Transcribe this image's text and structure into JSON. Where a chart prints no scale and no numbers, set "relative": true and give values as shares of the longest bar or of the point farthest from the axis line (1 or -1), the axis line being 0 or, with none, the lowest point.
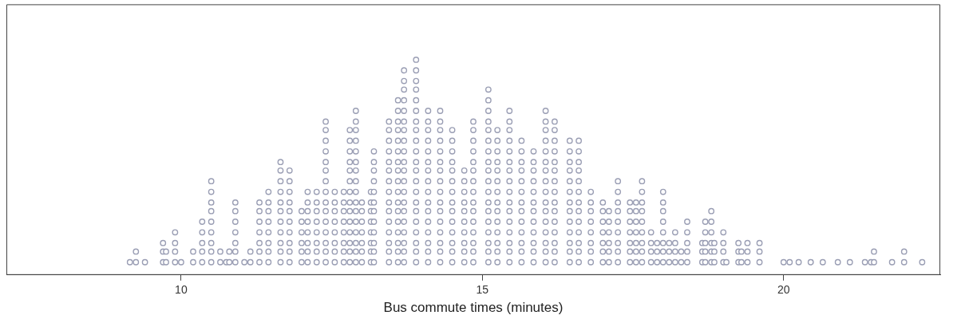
{
  "chart_data": {
    "type": "scatter",
    "relative": true,
    "xlabel": "Bus commute times (minutes)",
    "xlim": [
      7.1,
      22.6
    ],
    "xticks": [
      10,
      15,
      20
    ],
    "tick_labels": "x",
    "grid": false,
    "legend": false,
    "marker": "circle",
    "series": [
      {
        "color": "#9a9eb4",
        "x": [
          9.15,
          9.25,
          9.25,
          9.4,
          9.7,
          9.7,
          9.7,
          9.75,
          9.75,
          9.9,
          9.9,
          9.9,
          9.9,
          10,
          10.2,
          10.2,
          10.35,
          10.35,
          10.35,
          10.35,
          10.35,
          10.5,
          10.5,
          10.5,
          10.5,
          10.5,
          10.5,
          10.5,
          10.5,
          10.5,
          10.65,
          10.65,
          10.75,
          10.8,
          10.8,
          10.9,
          10.9,
          10.9,
          10.9,
          10.9,
          10.9,
          10.9,
          11.05,
          11.15,
          11.15,
          11.3,
          11.3,
          11.3,
          11.3,
          11.3,
          11.3,
          11.3,
          11.45,
          11.45,
          11.45,
          11.45,
          11.45,
          11.45,
          11.45,
          11.45,
          11.65,
          11.65,
          11.65,
          11.65,
          11.65,
          11.65,
          11.65,
          11.65,
          11.65,
          11.65,
          11.65,
          11.8,
          11.8,
          11.8,
          11.8,
          11.8,
          11.8,
          11.8,
          11.8,
          11.8,
          11.8,
          12,
          12,
          12,
          12,
          12,
          12,
          12.1,
          12.1,
          12.1,
          12.1,
          12.1,
          12.1,
          12.1,
          12.1,
          12.25,
          12.25,
          12.25,
          12.25,
          12.25,
          12.25,
          12.25,
          12.25,
          12.4,
          12.4,
          12.4,
          12.4,
          12.4,
          12.4,
          12.4,
          12.4,
          12.4,
          12.4,
          12.4,
          12.4,
          12.4,
          12.4,
          12.4,
          12.55,
          12.55,
          12.55,
          12.55,
          12.55,
          12.55,
          12.55,
          12.55,
          12.7,
          12.7,
          12.7,
          12.7,
          12.7,
          12.7,
          12.7,
          12.7,
          12.8,
          12.8,
          12.8,
          12.8,
          12.8,
          12.8,
          12.8,
          12.8,
          12.8,
          12.8,
          12.8,
          12.8,
          12.8,
          12.8,
          12.9,
          12.9,
          12.9,
          12.9,
          12.9,
          12.9,
          12.9,
          12.9,
          12.9,
          12.9,
          12.9,
          12.9,
          12.9,
          12.9,
          12.9,
          12.9,
          13,
          13,
          13,
          13,
          13,
          13,
          13,
          13.15,
          13.15,
          13.15,
          13.15,
          13.15,
          13.15,
          13.15,
          13.15,
          13.2,
          13.2,
          13.2,
          13.2,
          13.2,
          13.2,
          13.2,
          13.2,
          13.2,
          13.2,
          13.2,
          13.2,
          13.45,
          13.45,
          13.45,
          13.45,
          13.45,
          13.45,
          13.45,
          13.45,
          13.45,
          13.45,
          13.45,
          13.45,
          13.45,
          13.45,
          13.45,
          13.6,
          13.6,
          13.6,
          13.6,
          13.6,
          13.6,
          13.6,
          13.6,
          13.6,
          13.6,
          13.6,
          13.6,
          13.6,
          13.6,
          13.6,
          13.6,
          13.6,
          13.7,
          13.7,
          13.7,
          13.7,
          13.7,
          13.7,
          13.7,
          13.7,
          13.7,
          13.7,
          13.7,
          13.7,
          13.7,
          13.7,
          13.7,
          13.7,
          13.7,
          13.7,
          13.7,
          13.7,
          13.9,
          13.9,
          13.9,
          13.9,
          13.9,
          13.9,
          13.9,
          13.9,
          13.9,
          13.9,
          13.9,
          13.9,
          13.9,
          13.9,
          13.9,
          13.9,
          13.9,
          13.9,
          13.9,
          13.9,
          13.9,
          14.1,
          14.1,
          14.1,
          14.1,
          14.1,
          14.1,
          14.1,
          14.1,
          14.1,
          14.1,
          14.1,
          14.1,
          14.1,
          14.1,
          14.1,
          14.1,
          14.3,
          14.3,
          14.3,
          14.3,
          14.3,
          14.3,
          14.3,
          14.3,
          14.3,
          14.3,
          14.3,
          14.3,
          14.3,
          14.3,
          14.3,
          14.3,
          14.5,
          14.5,
          14.5,
          14.5,
          14.5,
          14.5,
          14.5,
          14.5,
          14.5,
          14.5,
          14.5,
          14.5,
          14.5,
          14.5,
          14.7,
          14.7,
          14.7,
          14.7,
          14.7,
          14.7,
          14.7,
          14.7,
          14.7,
          14.7,
          14.85,
          14.85,
          14.85,
          14.85,
          14.85,
          14.85,
          14.85,
          14.85,
          14.85,
          14.85,
          14.85,
          14.85,
          14.85,
          14.85,
          14.85,
          15.1,
          15.1,
          15.1,
          15.1,
          15.1,
          15.1,
          15.1,
          15.1,
          15.1,
          15.1,
          15.1,
          15.1,
          15.1,
          15.1,
          15.1,
          15.1,
          15.1,
          15.1,
          15.25,
          15.25,
          15.25,
          15.25,
          15.25,
          15.25,
          15.25,
          15.25,
          15.25,
          15.25,
          15.25,
          15.25,
          15.25,
          15.25,
          15.45,
          15.45,
          15.45,
          15.45,
          15.45,
          15.45,
          15.45,
          15.45,
          15.45,
          15.45,
          15.45,
          15.45,
          15.45,
          15.45,
          15.45,
          15.45,
          15.65,
          15.65,
          15.65,
          15.65,
          15.65,
          15.65,
          15.65,
          15.65,
          15.65,
          15.65,
          15.65,
          15.65,
          15.65,
          15.85,
          15.85,
          15.85,
          15.85,
          15.85,
          15.85,
          15.85,
          15.85,
          15.85,
          15.85,
          15.85,
          15.85,
          16.05,
          16.05,
          16.05,
          16.05,
          16.05,
          16.05,
          16.05,
          16.05,
          16.05,
          16.05,
          16.05,
          16.05,
          16.05,
          16.05,
          16.05,
          16.05,
          16.2,
          16.2,
          16.2,
          16.2,
          16.2,
          16.2,
          16.2,
          16.2,
          16.2,
          16.2,
          16.2,
          16.2,
          16.2,
          16.2,
          16.2,
          16.45,
          16.45,
          16.45,
          16.45,
          16.45,
          16.45,
          16.45,
          16.45,
          16.45,
          16.45,
          16.45,
          16.45,
          16.45,
          16.6,
          16.6,
          16.6,
          16.6,
          16.6,
          16.6,
          16.6,
          16.6,
          16.6,
          16.6,
          16.6,
          16.6,
          16.6,
          16.8,
          16.8,
          16.8,
          16.8,
          16.8,
          16.8,
          16.8,
          16.8,
          17,
          17,
          17,
          17,
          17,
          17,
          17,
          17.1,
          17.1,
          17.1,
          17.1,
          17.1,
          17.1,
          17.25,
          17.25,
          17.25,
          17.25,
          17.25,
          17.25,
          17.25,
          17.25,
          17.25,
          17.45,
          17.45,
          17.45,
          17.45,
          17.45,
          17.45,
          17.45,
          17.55,
          17.55,
          17.55,
          17.55,
          17.55,
          17.55,
          17.55,
          17.65,
          17.65,
          17.65,
          17.65,
          17.65,
          17.65,
          17.65,
          17.65,
          17.65,
          17.8,
          17.8,
          17.8,
          17.8,
          17.9,
          17.9,
          17.9,
          18,
          18,
          18,
          18,
          18,
          18,
          18,
          18,
          18.1,
          18.1,
          18.1,
          18.2,
          18.2,
          18.2,
          18.2,
          18.3,
          18.3,
          18.4,
          18.4,
          18.4,
          18.4,
          18.4,
          18.65,
          18.65,
          18.65,
          18.7,
          18.7,
          18.7,
          18.7,
          18.7,
          18.8,
          18.8,
          18.8,
          18.8,
          18.8,
          18.8,
          18.85,
          18.85,
          18.85,
          19,
          19,
          19,
          19,
          19.05,
          19.25,
          19.25,
          19.25,
          19.3,
          19.3,
          19.4,
          19.4,
          19.4,
          19.6,
          19.6,
          19.6,
          20,
          20.1,
          20.25,
          20.45,
          20.65,
          20.9,
          21.1,
          21.35,
          21.45,
          21.5,
          21.5,
          21.8,
          22,
          22,
          22.3
        ],
        "values": [
          0.05,
          0.05,
          0.1,
          0.05,
          0.05,
          0.1,
          0.14,
          0.05,
          0.1,
          0.05,
          0.1,
          0.14,
          0.19,
          0.05,
          0.05,
          0.1,
          0.05,
          0.1,
          0.14,
          0.19,
          0.24,
          0.05,
          0.1,
          0.14,
          0.19,
          0.24,
          0.29,
          0.33,
          0.38,
          0.43,
          0.05,
          0.1,
          0.05,
          0.05,
          0.1,
          0.05,
          0.1,
          0.14,
          0.19,
          0.24,
          0.29,
          0.33,
          0.05,
          0.05,
          0.1,
          0.05,
          0.1,
          0.14,
          0.19,
          0.24,
          0.29,
          0.33,
          0.05,
          0.1,
          0.14,
          0.19,
          0.24,
          0.29,
          0.33,
          0.38,
          0.05,
          0.1,
          0.14,
          0.19,
          0.24,
          0.29,
          0.33,
          0.38,
          0.43,
          0.48,
          0.52,
          0.05,
          0.1,
          0.14,
          0.19,
          0.24,
          0.29,
          0.33,
          0.38,
          0.43,
          0.48,
          0.05,
          0.1,
          0.14,
          0.19,
          0.24,
          0.29,
          0.05,
          0.1,
          0.14,
          0.19,
          0.24,
          0.29,
          0.33,
          0.38,
          0.05,
          0.1,
          0.14,
          0.19,
          0.24,
          0.29,
          0.33,
          0.38,
          0.05,
          0.1,
          0.14,
          0.19,
          0.24,
          0.29,
          0.33,
          0.38,
          0.43,
          0.48,
          0.52,
          0.57,
          0.62,
          0.67,
          0.71,
          0.05,
          0.1,
          0.14,
          0.19,
          0.24,
          0.29,
          0.33,
          0.38,
          0.05,
          0.1,
          0.14,
          0.19,
          0.24,
          0.29,
          0.33,
          0.38,
          0.05,
          0.1,
          0.14,
          0.19,
          0.24,
          0.29,
          0.33,
          0.38,
          0.43,
          0.48,
          0.52,
          0.57,
          0.62,
          0.67,
          0.05,
          0.1,
          0.14,
          0.19,
          0.24,
          0.29,
          0.33,
          0.38,
          0.43,
          0.48,
          0.52,
          0.57,
          0.62,
          0.67,
          0.71,
          0.76,
          0.05,
          0.1,
          0.14,
          0.19,
          0.24,
          0.29,
          0.33,
          0.05,
          0.1,
          0.14,
          0.19,
          0.24,
          0.29,
          0.33,
          0.38,
          0.05,
          0.1,
          0.14,
          0.19,
          0.24,
          0.29,
          0.33,
          0.38,
          0.43,
          0.48,
          0.52,
          0.57,
          0.05,
          0.1,
          0.14,
          0.19,
          0.24,
          0.29,
          0.33,
          0.38,
          0.43,
          0.48,
          0.52,
          0.57,
          0.62,
          0.67,
          0.71,
          0.05,
          0.1,
          0.14,
          0.19,
          0.24,
          0.29,
          0.33,
          0.38,
          0.43,
          0.48,
          0.52,
          0.57,
          0.62,
          0.67,
          0.71,
          0.76,
          0.81,
          0.05,
          0.1,
          0.14,
          0.19,
          0.24,
          0.29,
          0.33,
          0.38,
          0.43,
          0.48,
          0.52,
          0.57,
          0.62,
          0.67,
          0.71,
          0.76,
          0.81,
          0.86,
          0.9,
          0.95,
          0.05,
          0.1,
          0.14,
          0.19,
          0.24,
          0.29,
          0.33,
          0.38,
          0.43,
          0.48,
          0.52,
          0.57,
          0.62,
          0.67,
          0.71,
          0.76,
          0.81,
          0.86,
          0.9,
          0.95,
          1,
          0.05,
          0.1,
          0.14,
          0.19,
          0.24,
          0.29,
          0.33,
          0.38,
          0.43,
          0.48,
          0.52,
          0.57,
          0.62,
          0.67,
          0.71,
          0.76,
          0.05,
          0.1,
          0.14,
          0.19,
          0.24,
          0.29,
          0.33,
          0.38,
          0.43,
          0.48,
          0.52,
          0.57,
          0.62,
          0.67,
          0.71,
          0.76,
          0.05,
          0.1,
          0.14,
          0.19,
          0.24,
          0.29,
          0.33,
          0.38,
          0.43,
          0.48,
          0.52,
          0.57,
          0.62,
          0.67,
          0.05,
          0.1,
          0.14,
          0.19,
          0.24,
          0.29,
          0.33,
          0.38,
          0.43,
          0.48,
          0.05,
          0.1,
          0.14,
          0.19,
          0.24,
          0.29,
          0.33,
          0.38,
          0.43,
          0.48,
          0.52,
          0.57,
          0.62,
          0.67,
          0.71,
          0.05,
          0.1,
          0.14,
          0.19,
          0.24,
          0.29,
          0.33,
          0.38,
          0.43,
          0.48,
          0.52,
          0.57,
          0.62,
          0.67,
          0.71,
          0.76,
          0.81,
          0.86,
          0.05,
          0.1,
          0.14,
          0.19,
          0.24,
          0.29,
          0.33,
          0.38,
          0.43,
          0.48,
          0.52,
          0.57,
          0.62,
          0.67,
          0.05,
          0.1,
          0.14,
          0.19,
          0.24,
          0.29,
          0.33,
          0.38,
          0.43,
          0.48,
          0.52,
          0.57,
          0.62,
          0.67,
          0.71,
          0.76,
          0.05,
          0.1,
          0.14,
          0.19,
          0.24,
          0.29,
          0.33,
          0.38,
          0.43,
          0.48,
          0.52,
          0.57,
          0.62,
          0.05,
          0.1,
          0.14,
          0.19,
          0.24,
          0.29,
          0.33,
          0.38,
          0.43,
          0.48,
          0.52,
          0.57,
          0.05,
          0.1,
          0.14,
          0.19,
          0.24,
          0.29,
          0.33,
          0.38,
          0.43,
          0.48,
          0.52,
          0.57,
          0.62,
          0.67,
          0.71,
          0.76,
          0.05,
          0.1,
          0.14,
          0.19,
          0.24,
          0.29,
          0.33,
          0.38,
          0.43,
          0.48,
          0.52,
          0.57,
          0.62,
          0.67,
          0.71,
          0.05,
          0.1,
          0.14,
          0.19,
          0.24,
          0.29,
          0.33,
          0.38,
          0.43,
          0.48,
          0.52,
          0.57,
          0.62,
          0.05,
          0.1,
          0.14,
          0.19,
          0.24,
          0.29,
          0.33,
          0.38,
          0.43,
          0.48,
          0.52,
          0.57,
          0.62,
          0.05,
          0.1,
          0.14,
          0.19,
          0.24,
          0.29,
          0.33,
          0.38,
          0.05,
          0.1,
          0.14,
          0.19,
          0.24,
          0.29,
          0.33,
          0.05,
          0.1,
          0.14,
          0.19,
          0.24,
          0.29,
          0.05,
          0.1,
          0.14,
          0.19,
          0.24,
          0.29,
          0.33,
          0.38,
          0.43,
          0.05,
          0.1,
          0.14,
          0.19,
          0.24,
          0.29,
          0.33,
          0.05,
          0.1,
          0.14,
          0.19,
          0.24,
          0.29,
          0.33,
          0.05,
          0.1,
          0.14,
          0.19,
          0.24,
          0.29,
          0.33,
          0.38,
          0.43,
          0.05,
          0.1,
          0.14,
          0.19,
          0.05,
          0.1,
          0.14,
          0.05,
          0.1,
          0.14,
          0.19,
          0.24,
          0.29,
          0.33,
          0.38,
          0.05,
          0.1,
          0.14,
          0.05,
          0.1,
          0.14,
          0.19,
          0.05,
          0.1,
          0.05,
          0.1,
          0.14,
          0.19,
          0.24,
          0.05,
          0.1,
          0.14,
          0.05,
          0.1,
          0.14,
          0.19,
          0.24,
          0.05,
          0.1,
          0.14,
          0.19,
          0.24,
          0.29,
          0.05,
          0.1,
          0.14,
          0.05,
          0.1,
          0.14,
          0.19,
          0.05,
          0.05,
          0.1,
          0.14,
          0.05,
          0.1,
          0.05,
          0.1,
          0.14,
          0.05,
          0.1,
          0.14,
          0.05,
          0.05,
          0.05,
          0.05,
          0.05,
          0.05,
          0.05,
          0.05,
          0.05,
          0.05,
          0.1,
          0.05,
          0.05,
          0.1,
          0.05
        ]
      }
    ]
  }
}
